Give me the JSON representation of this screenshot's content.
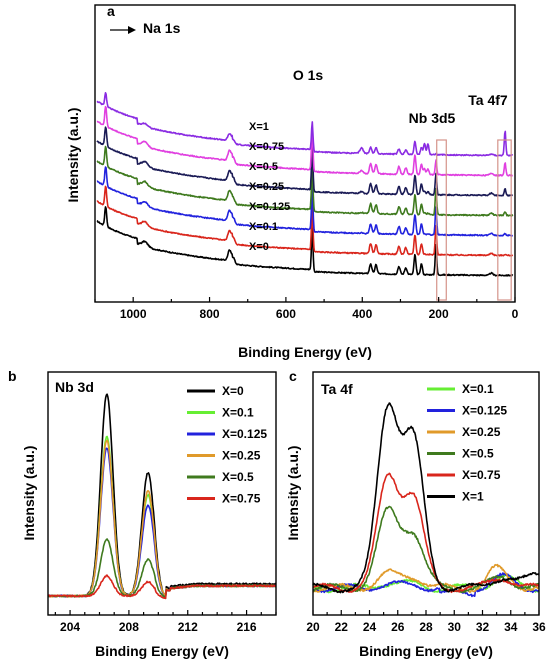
{
  "chart_data": [
    {
      "id": "a",
      "type": "line",
      "panel_label": "a",
      "title": "",
      "xlabel": "Binding Energy (eV)",
      "ylabel": "Intensity (a.u.)",
      "xlim": [
        1100,
        0
      ],
      "x_reversed": true,
      "x_ticks": [
        1000,
        800,
        600,
        400,
        200,
        0
      ],
      "y_ticks_shown": false,
      "grid": false,
      "annotations": [
        {
          "text": "Na 1s",
          "x": 1072,
          "arrow": true
        },
        {
          "text": "O 1s",
          "x": 531
        },
        {
          "text": "Nb 3d5",
          "x": 207
        },
        {
          "text": "Ta 4f7",
          "x": 26
        }
      ],
      "highlight_boxes": [
        {
          "x_from": 205,
          "x_to": 180
        },
        {
          "x_from": 45,
          "x_to": 10
        }
      ],
      "series": [
        {
          "name": "X=0",
          "color": "#000000",
          "offset": 0,
          "ta": 0.0,
          "scale": 1.0
        },
        {
          "name": "X=0.1",
          "color": "#d9261c",
          "offset": 1,
          "ta": 0.05,
          "scale": 0.95
        },
        {
          "name": "X=0.125",
          "color": "#2222dd",
          "offset": 2,
          "ta": 0.07,
          "scale": 0.92
        },
        {
          "name": "X=0.25",
          "color": "#3f7a1e",
          "offset": 3,
          "ta": 0.15,
          "scale": 0.85
        },
        {
          "name": "X=0.5",
          "color": "#1a1a55",
          "offset": 4,
          "ta": 0.3,
          "scale": 0.7
        },
        {
          "name": "X=0.75",
          "color": "#e040e0",
          "offset": 5,
          "ta": 0.55,
          "scale": 0.45
        },
        {
          "name": "X=1",
          "color": "#8a2be2",
          "offset": 6,
          "ta": 1.0,
          "scale": 0.0
        }
      ],
      "peaks": [
        {
          "x": 1072,
          "h": 0.9,
          "w": 2.5,
          "nb": 1
        },
        {
          "x": 970,
          "h": 0.25,
          "w": 8,
          "nb": 1
        },
        {
          "x": 748,
          "h": 0.45,
          "w": 4,
          "nb": 1
        },
        {
          "x": 738,
          "h": 0.3,
          "w": 4,
          "nb": 1
        },
        {
          "x": 531,
          "h": 1.9,
          "w": 2,
          "nb": 1
        },
        {
          "x": 378,
          "h": 0.45,
          "w": 3,
          "nb": 1
        },
        {
          "x": 364,
          "h": 0.4,
          "w": 3,
          "nb": 1
        },
        {
          "x": 304,
          "h": 0.35,
          "w": 3,
          "nb": 1
        },
        {
          "x": 286,
          "h": 0.3,
          "w": 3,
          "nb": 1
        },
        {
          "x": 262,
          "h": 0.9,
          "w": 2.5,
          "nb": 1
        },
        {
          "x": 245,
          "h": 0.5,
          "w": 2.5,
          "nb": 1
        },
        {
          "x": 207,
          "h": 1.3,
          "w": 2,
          "nb": 1
        },
        {
          "x": 402,
          "h": 0.25,
          "w": 4,
          "nb": -1
        },
        {
          "x": 237,
          "h": 0.5,
          "w": 2.5,
          "nb": -1
        },
        {
          "x": 228,
          "h": 0.5,
          "w": 2.5,
          "nb": -1
        },
        {
          "x": 26,
          "h": 1.1,
          "w": 2,
          "nb": -1
        },
        {
          "x": 62,
          "h": 0.1,
          "w": 4,
          "nb": 1
        }
      ]
    },
    {
      "id": "b",
      "type": "line",
      "panel_label": "b",
      "title": "Nb 3d",
      "xlabel": "Binding Energy (eV)",
      "ylabel": "Intensity (a.u.)",
      "xlim": [
        202.5,
        218
      ],
      "x_ticks": [
        204,
        208,
        212,
        216
      ],
      "y_ticks_shown": false,
      "grid": false,
      "legend_position": "top-right",
      "series": [
        {
          "name": "X=0",
          "color": "#000000",
          "peak1": 1.0,
          "peak2": 0.61
        },
        {
          "name": "X=0.1",
          "color": "#66ee33",
          "peak1": 0.79,
          "peak2": 0.5
        },
        {
          "name": "X=0.125",
          "color": "#2222dd",
          "peak1": 0.73,
          "peak2": 0.45
        },
        {
          "name": "X=0.25",
          "color": "#e09a2a",
          "peak1": 0.77,
          "peak2": 0.52
        },
        {
          "name": "X=0.5",
          "color": "#3f7a1e",
          "peak1": 0.28,
          "peak2": 0.18
        },
        {
          "name": "X=0.75",
          "color": "#d9261c",
          "peak1": 0.1,
          "peak2": 0.07
        }
      ],
      "peak_positions": [
        206.5,
        209.3
      ]
    },
    {
      "id": "c",
      "type": "line",
      "panel_label": "c",
      "title": "Ta 4f",
      "xlabel": "Binding Energy (eV)",
      "ylabel": "Intensity (a.u.)",
      "xlim": [
        20,
        36
      ],
      "x_ticks": [
        20,
        22,
        24,
        26,
        28,
        30,
        32,
        34,
        36
      ],
      "y_ticks_shown": false,
      "grid": false,
      "legend_position": "top-right",
      "series": [
        {
          "name": "X=0.1",
          "color": "#66ee33",
          "peak1": 0.03,
          "peak2": 0.02
        },
        {
          "name": "X=0.125",
          "color": "#2222dd",
          "peak1": 0.02,
          "peak2": 0.015
        },
        {
          "name": "X=0.25",
          "color": "#e09a2a",
          "peak1": 0.08,
          "peak2": 0.06
        },
        {
          "name": "X=0.5",
          "color": "#3f7a1e",
          "peak1": 0.42,
          "peak2": 0.3
        },
        {
          "name": "X=0.75",
          "color": "#d9261c",
          "peak1": 0.61,
          "peak2": 0.5
        },
        {
          "name": "X=1",
          "color": "#000000",
          "peak1": 1.0,
          "peak2": 0.82
        }
      ],
      "peak_positions": [
        25.3,
        27.1
      ]
    }
  ]
}
